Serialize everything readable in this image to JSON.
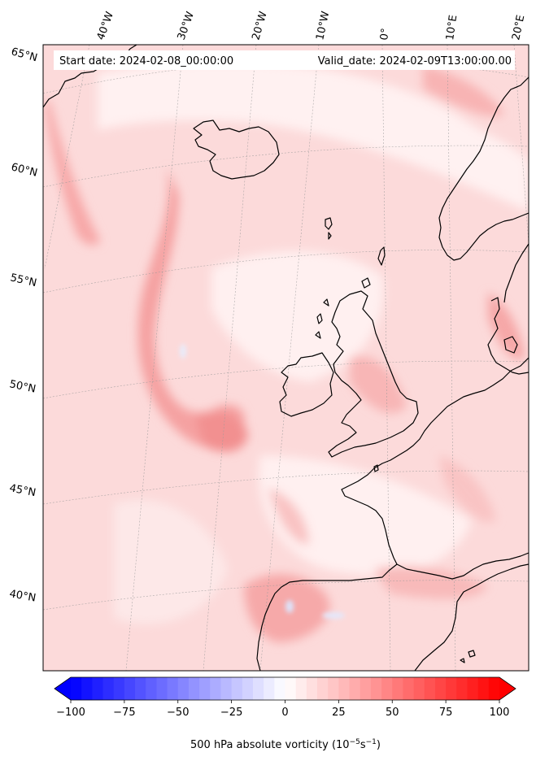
{
  "header": {
    "start_date": "Start date: 2024-02-08_00:00:00",
    "valid_date": "Valid_date: 2024-02-09T13:00:00.00"
  },
  "longitude_labels": [
    "40°W",
    "30°W",
    "20°W",
    "10°W",
    "0°",
    "10°E",
    "20°E"
  ],
  "latitude_labels": [
    "65°N",
    "60°N",
    "55°N",
    "50°N",
    "45°N",
    "40°N"
  ],
  "colorbar": {
    "tick_labels": [
      "−100",
      "−75",
      "−50",
      "−25",
      "0",
      "25",
      "50",
      "75",
      "100"
    ],
    "tick_values": [
      -100,
      -75,
      -50,
      -25,
      0,
      25,
      50,
      75,
      100
    ],
    "label_prefix": "500 hPa absolute vorticity (10",
    "label_exp1": "−5",
    "label_mid": "s",
    "label_exp2": "−1",
    "label_suffix": ")",
    "range": [
      -100,
      100
    ],
    "colormap": "bwr",
    "extend": "both"
  },
  "colors": {
    "land_outline": "#000000",
    "field_background": "#fdd9d9",
    "gridline": "#9a9a9a",
    "negative_end": "#0000ff",
    "positive_end": "#ff0000",
    "neutral": "#ffffff"
  }
}
